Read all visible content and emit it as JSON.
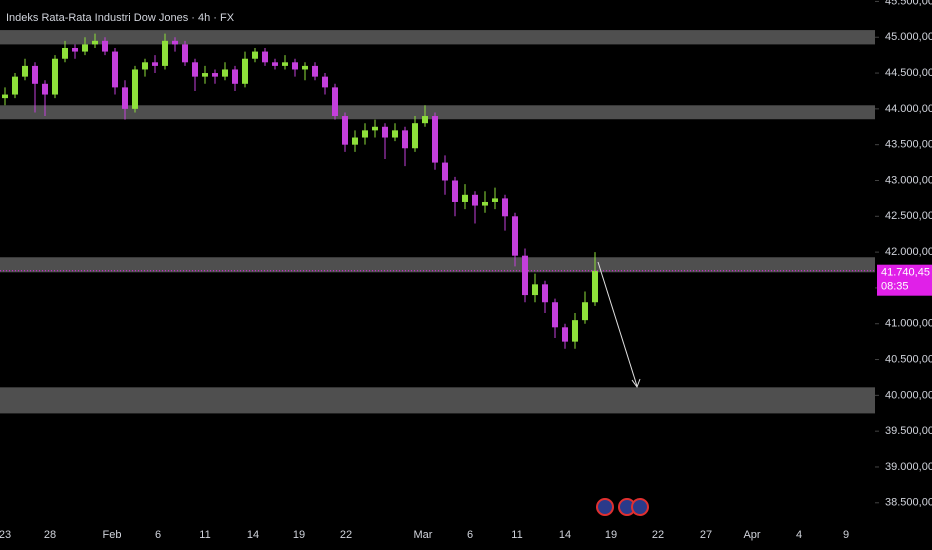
{
  "chart_data": {
    "type": "candlestick",
    "title": "Indeks Rata-Rata Industri Dow Jones · 4h · FX",
    "up_color": "#8ee03a",
    "down_color": "#c43fdc",
    "open": [
      44150,
      44200,
      44450,
      44600,
      44350,
      44200,
      44700,
      44850,
      44800,
      44900,
      44950,
      44800,
      44300,
      44000,
      44550,
      44650,
      44600,
      44950,
      44900,
      44650,
      44450,
      44500,
      44450,
      44550,
      44350,
      44700,
      44800,
      44650,
      44600,
      44650,
      44550,
      44600,
      44450,
      44300,
      43900,
      43500,
      43600,
      43700,
      43750,
      43600,
      43700,
      43450,
      43800,
      43900,
      43250,
      43000,
      42700,
      42800,
      42650,
      42700,
      42750,
      42500,
      41950,
      41400,
      41550,
      41300,
      40950,
      40750,
      41050,
      41300
    ],
    "high": [
      44300,
      44500,
      44700,
      44650,
      44400,
      44750,
      44950,
      44900,
      45000,
      45050,
      45000,
      44850,
      44400,
      44600,
      44700,
      44750,
      45050,
      45000,
      44950,
      44700,
      44600,
      44550,
      44650,
      44600,
      44800,
      44850,
      44850,
      44700,
      44750,
      44700,
      44650,
      44650,
      44500,
      44350,
      43950,
      43700,
      43800,
      43850,
      43800,
      43800,
      43750,
      43900,
      44050,
      43950,
      43350,
      43050,
      42950,
      42850,
      42850,
      42900,
      42800,
      42550,
      42050,
      41700,
      41600,
      41350,
      41000,
      41150,
      41450,
      42000
    ],
    "low": [
      44050,
      44150,
      44400,
      43950,
      43900,
      44150,
      44650,
      44700,
      44750,
      44850,
      44750,
      44200,
      43850,
      43950,
      44450,
      44500,
      44550,
      44800,
      44600,
      44250,
      44350,
      44350,
      44400,
      44250,
      44300,
      44650,
      44600,
      44550,
      44550,
      44450,
      44400,
      44400,
      44200,
      43850,
      43400,
      43400,
      43500,
      43600,
      43300,
      43550,
      43200,
      43400,
      43750,
      43150,
      42800,
      42500,
      42600,
      42400,
      42550,
      42600,
      42300,
      41800,
      41300,
      41300,
      41150,
      40800,
      40650,
      40650,
      41000,
      41250
    ],
    "close": [
      44200,
      44450,
      44600,
      44350,
      44200,
      44700,
      44850,
      44800,
      44900,
      44950,
      44800,
      44300,
      44000,
      44550,
      44650,
      44600,
      44950,
      44900,
      44650,
      44450,
      44500,
      44450,
      44550,
      44350,
      44700,
      44800,
      44650,
      44600,
      44650,
      44550,
      44600,
      44450,
      44300,
      43900,
      43500,
      43600,
      43700,
      43750,
      43600,
      43700,
      43450,
      43800,
      43900,
      43250,
      43000,
      42700,
      42800,
      42650,
      42700,
      42750,
      42500,
      41950,
      41400,
      41550,
      41300,
      40950,
      40750,
      41050,
      41300,
      41740.45
    ],
    "xlim": [
      -0.5,
      87
    ],
    "xticks": [
      {
        "value": 0,
        "label": "23"
      },
      {
        "value": 4.5,
        "label": "28"
      },
      {
        "value": 10.7,
        "label": "Feb"
      },
      {
        "value": 15.3,
        "label": "6"
      },
      {
        "value": 20,
        "label": "11"
      },
      {
        "value": 24.8,
        "label": "14"
      },
      {
        "value": 29.4,
        "label": "19"
      },
      {
        "value": 34.1,
        "label": "22"
      },
      {
        "value": 41.8,
        "label": "Mar"
      },
      {
        "value": 46.5,
        "label": "6"
      },
      {
        "value": 51.2,
        "label": "11"
      },
      {
        "value": 56,
        "label": "14"
      },
      {
        "value": 60.6,
        "label": "19"
      },
      {
        "value": 65.3,
        "label": "22"
      },
      {
        "value": 70.1,
        "label": "27"
      },
      {
        "value": 74.7,
        "label": "Apr"
      },
      {
        "value": 79.4,
        "label": "4"
      },
      {
        "value": 84.1,
        "label": "9"
      }
    ],
    "ylim": [
      38120,
      45520
    ],
    "yticks": [
      {
        "value": 38500,
        "label": "38.500,00"
      },
      {
        "value": 39000,
        "label": "39.000,00"
      },
      {
        "value": 39500,
        "label": "39.500,00"
      },
      {
        "value": 40000,
        "label": "40.000,00"
      },
      {
        "value": 40500,
        "label": "40.500,00"
      },
      {
        "value": 41000,
        "label": "41.000,00"
      },
      {
        "value": 41500,
        "label": "41.500,00"
      },
      {
        "value": 42000,
        "label": "42.000,00"
      },
      {
        "value": 42500,
        "label": "42.500,00"
      },
      {
        "value": 43000,
        "label": "43.000,00"
      },
      {
        "value": 43500,
        "label": "43.500,00"
      },
      {
        "value": 44000,
        "label": "44.000,00"
      },
      {
        "value": 44500,
        "label": "44.500,00"
      },
      {
        "value": 45000,
        "label": "45.000,00"
      },
      {
        "value": 45500,
        "label": "45.500,00"
      }
    ],
    "zones": [
      [
        44900,
        45100
      ],
      [
        43855,
        44050
      ],
      [
        41718,
        41928
      ],
      [
        39748,
        40112
      ]
    ],
    "zone_color": "#5d5d5d",
    "last_price": {
      "value": 41740.45,
      "label": "41.740,45"
    },
    "countdown": "08:35",
    "last_color": "#e020e8"
  }
}
